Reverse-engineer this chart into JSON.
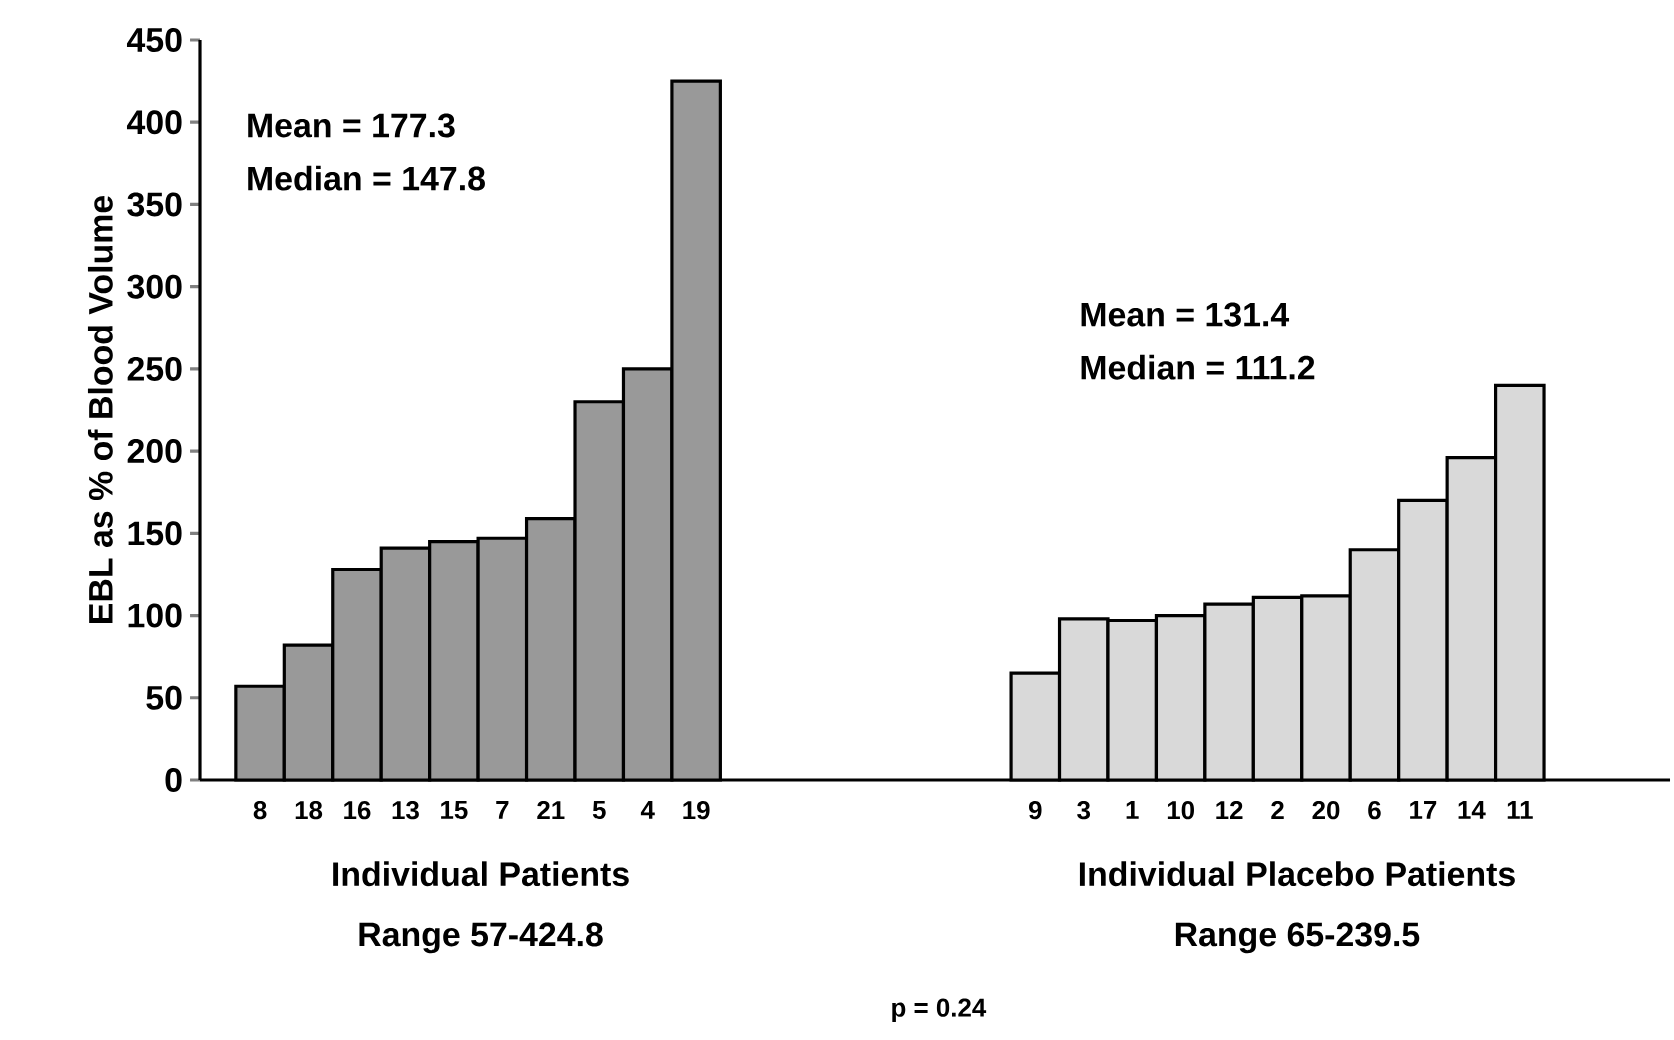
{
  "chart_data": {
    "type": "bar",
    "ylabel": "EBL as % of Blood Volume",
    "categories": [
      "8",
      "18",
      "16",
      "13",
      "15",
      "7",
      "21",
      "5",
      "4",
      "19",
      null,
      null,
      null,
      null,
      null,
      null,
      "9",
      "3",
      "1",
      "10",
      "12",
      "2",
      "20",
      "6",
      "17",
      "14",
      "11"
    ],
    "series": [
      {
        "color": "#999999",
        "values": [
          57,
          82,
          128,
          141,
          145,
          147,
          159,
          230,
          250,
          425,
          null,
          null,
          null,
          null,
          null,
          null,
          null,
          null,
          null,
          null,
          null,
          null,
          null,
          null,
          null,
          null,
          null
        ]
      },
      {
        "color": "#d9d9d9",
        "values": [
          null,
          null,
          null,
          null,
          null,
          null,
          null,
          null,
          null,
          null,
          null,
          null,
          null,
          null,
          null,
          null,
          65,
          98,
          97,
          100,
          107,
          111,
          112,
          140,
          170,
          196,
          240
        ]
      }
    ],
    "ylim": [
      0,
      450
    ],
    "yticks": [
      0,
      50,
      100,
      150,
      200,
      250,
      300,
      350,
      400,
      450
    ],
    "annotations": [
      "Mean = 177.3",
      "Median = 147.8",
      "Mean = 131.4",
      "Median = 111.2",
      "Individual Patients",
      "Range 57-424.8",
      "Individual Placebo Patients",
      "Range 65-239.5",
      "p = 0.24"
    ]
  }
}
